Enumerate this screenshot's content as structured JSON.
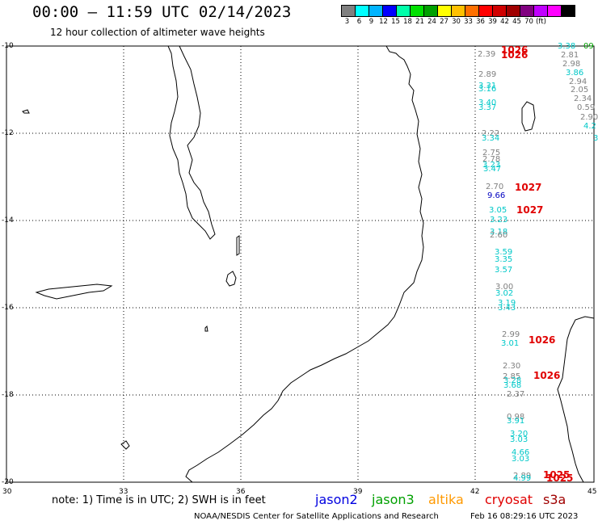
{
  "header": {
    "title": "00:00 – 11:59 UTC 02/14/2023",
    "subtitle": "12 hour collection of altimeter wave heights"
  },
  "legend": {
    "colors": [
      "#7f7f7f",
      "#00ffff",
      "#00b4ff",
      "#0000ff",
      "#00ffaa",
      "#00e000",
      "#00a000",
      "#ffff00",
      "#ffc000",
      "#ff7000",
      "#ff0000",
      "#d00000",
      "#a00000",
      "#800080",
      "#c000ff",
      "#ff00ff",
      "#000000"
    ],
    "labels": [
      "3",
      "6",
      "9",
      "12",
      "15",
      "18",
      "21",
      "24",
      "27",
      "30",
      "33",
      "36",
      "39",
      "42",
      "45",
      "70",
      "(ft)"
    ]
  },
  "axes": {
    "y_labels": [
      "-10",
      "-12",
      "-14",
      "-16",
      "-18",
      "-20"
    ],
    "x_labels": [
      "30",
      "33",
      "36",
      "39",
      "42",
      "45"
    ]
  },
  "wave_labels": [
    {
      "t": "3.38",
      "c": "#00c8c8"
    },
    {
      "t": "09",
      "c": "#00a000"
    },
    {
      "t": "2.39",
      "c": "#808080"
    },
    {
      "t": "1026",
      "c": "#e00000"
    },
    {
      "t": "1026",
      "c": "#e00000"
    },
    {
      "t": "2.81",
      "c": "#808080"
    },
    {
      "t": "2.98",
      "c": "#808080"
    },
    {
      "t": "3.86",
      "c": "#00c8c8"
    },
    {
      "t": "2.89",
      "c": "#808080"
    },
    {
      "t": "2.94",
      "c": "#808080"
    },
    {
      "t": "2.05",
      "c": "#808080"
    },
    {
      "t": "3.31",
      "c": "#00c8c8"
    },
    {
      "t": "3.16",
      "c": "#00c8c8"
    },
    {
      "t": "2.34",
      "c": "#808080"
    },
    {
      "t": "3.40",
      "c": "#00c8c8"
    },
    {
      "t": "0.59",
      "c": "#808080"
    },
    {
      "t": "3.37",
      "c": "#00c8c8"
    },
    {
      "t": "2.90",
      "c": "#808080"
    },
    {
      "t": "4.2",
      "c": "#00c8c8"
    },
    {
      "t": "2.22",
      "c": "#808080"
    },
    {
      "t": "3.34",
      "c": "#00c8c8"
    },
    {
      "t": "3",
      "c": "#00c8c8"
    },
    {
      "t": "2.75",
      "c": "#808080"
    },
    {
      "t": "2.78",
      "c": "#808080"
    },
    {
      "t": "3.23",
      "c": "#00c8c8"
    },
    {
      "t": "3.47",
      "c": "#00c8c8"
    },
    {
      "t": "2.70",
      "c": "#808080"
    },
    {
      "t": "1027",
      "c": "#e00000"
    },
    {
      "t": "9.66",
      "c": "#0000c0"
    },
    {
      "t": "3.05",
      "c": "#00c8c8"
    },
    {
      "t": "1027",
      "c": "#e00000"
    },
    {
      "t": "3.23",
      "c": "#00c8c8"
    },
    {
      "t": "3.18",
      "c": "#00c8c8"
    },
    {
      "t": "2.60",
      "c": "#808080"
    },
    {
      "t": "3.59",
      "c": "#00c8c8"
    },
    {
      "t": "3.35",
      "c": "#00c8c8"
    },
    {
      "t": "3.57",
      "c": "#00c8c8"
    },
    {
      "t": "3.00",
      "c": "#808080"
    },
    {
      "t": "3.02",
      "c": "#00c8c8"
    },
    {
      "t": "3.19",
      "c": "#00c8c8"
    },
    {
      "t": "3.43",
      "c": "#00c8c8"
    },
    {
      "t": "2.99",
      "c": "#808080"
    },
    {
      "t": "1026",
      "c": "#e00000"
    },
    {
      "t": "3.01",
      "c": "#00c8c8"
    },
    {
      "t": "2.30",
      "c": "#808080"
    },
    {
      "t": "2.85",
      "c": "#808080"
    },
    {
      "t": "1026",
      "c": "#e00000"
    },
    {
      "t": "3.28",
      "c": "#00c8c8"
    },
    {
      "t": "3.68",
      "c": "#00c8c8"
    },
    {
      "t": "2.37",
      "c": "#808080"
    },
    {
      "t": "0.98",
      "c": "#808080"
    },
    {
      "t": "3.91",
      "c": "#00c8c8"
    },
    {
      "t": "3.20",
      "c": "#00c8c8"
    },
    {
      "t": "3.03",
      "c": "#00c8c8"
    },
    {
      "t": "4.66",
      "c": "#00c8c8"
    },
    {
      "t": "3.03",
      "c": "#00c8c8"
    },
    {
      "t": "2.89",
      "c": "#808080"
    },
    {
      "t": "1025",
      "c": "#e00000"
    },
    {
      "t": "4.99",
      "c": "#00c8c8"
    },
    {
      "t": "1025",
      "c": "#e00000"
    }
  ],
  "footer": {
    "note": "note: 1) Time is in UTC; 2) SWH is in feet",
    "satellites": [
      {
        "name": "jason2",
        "color": "#0000e0"
      },
      {
        "name": "jason3",
        "color": "#00a000"
      },
      {
        "name": "altika",
        "color": "#ff9900"
      },
      {
        "name": "cryosat",
        "color": "#e00000"
      },
      {
        "name": "s3a",
        "color": "#a00000"
      }
    ],
    "credit": "NOAA/NESDIS Center for Satellite Applications and Research",
    "timestamp": "Feb 16 08:29:16 UTC 2023"
  }
}
